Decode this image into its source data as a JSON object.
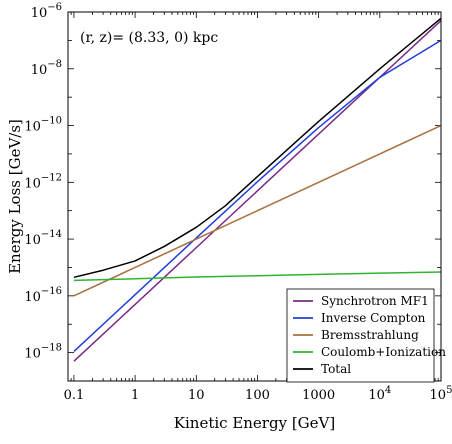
{
  "chart_data": {
    "type": "line",
    "title": "",
    "annotation": "(r, z)= (8.33, 0) kpc",
    "xlabel": "Kinetic Energy [GeV]",
    "ylabel": "Energy Loss [GeV/s]",
    "xscale": "log",
    "yscale": "log",
    "xlim": [
      0.08,
      100000
    ],
    "ylim": [
      1e-19,
      1e-06
    ],
    "x_ticks": [
      {
        "value": 0.1,
        "label": "0.1"
      },
      {
        "value": 1,
        "label": "1"
      },
      {
        "value": 10,
        "label": "10"
      },
      {
        "value": 100,
        "label": "100"
      },
      {
        "value": 1000,
        "label": "1000"
      },
      {
        "value": 10000,
        "label": "10",
        "exp": "4"
      },
      {
        "value": 100000,
        "label": "10",
        "exp": "5"
      }
    ],
    "y_ticks": [
      {
        "value": 1e-18,
        "label": "10",
        "exp": "−18"
      },
      {
        "value": 1e-16,
        "label": "10",
        "exp": "−16"
      },
      {
        "value": 1e-14,
        "label": "10",
        "exp": "−14"
      },
      {
        "value": 1e-12,
        "label": "10",
        "exp": "−12"
      },
      {
        "value": 1e-10,
        "label": "10",
        "exp": "−10"
      },
      {
        "value": 1e-08,
        "label": "10",
        "exp": "−8"
      },
      {
        "value": 1e-06,
        "label": "10",
        "exp": "−6"
      }
    ],
    "legend_position": "bottom-right",
    "grid": false,
    "series": [
      {
        "name": "Synchrotron MF1",
        "color": "#7b2a86",
        "x": [
          0.1,
          1,
          10,
          100,
          1000,
          10000,
          100000
        ],
        "y": [
          5e-19,
          5e-17,
          5e-15,
          5e-13,
          5e-11,
          5e-09,
          5e-07
        ]
      },
      {
        "name": "Inverse Compton",
        "color": "#1f3fdc",
        "x": [
          0.1,
          1,
          10,
          100,
          1000,
          10000,
          100000
        ],
        "y": [
          1.1e-18,
          1.1e-16,
          1.1e-14,
          1.05e-12,
          8.5e-11,
          5e-09,
          1e-07
        ]
      },
      {
        "name": "Bremsstrahlung",
        "color": "#a8703d",
        "x": [
          0.1,
          1,
          10,
          100,
          1000,
          10000,
          100000
        ],
        "y": [
          1e-16,
          1e-15,
          1e-14,
          1e-13,
          1e-12,
          1e-11,
          1e-10
        ]
      },
      {
        "name": "Coulomb+Ionization",
        "color": "#2fb42f",
        "x": [
          0.1,
          1,
          10,
          100,
          1000,
          10000,
          100000
        ],
        "y": [
          3.5e-16,
          4e-16,
          4.6e-16,
          5.1e-16,
          5.7e-16,
          6.3e-16,
          6.9e-16
        ]
      },
      {
        "name": "Total",
        "color": "#000000",
        "x": [
          0.1,
          0.3,
          1,
          3,
          10,
          30,
          100,
          1000,
          10000,
          100000
        ],
        "y": [
          4.5e-16,
          8e-16,
          1.7e-15,
          5.5e-15,
          2.6e-14,
          1.5e-13,
          1.6e-12,
          1.4e-10,
          1e-08,
          6e-07
        ]
      }
    ]
  }
}
